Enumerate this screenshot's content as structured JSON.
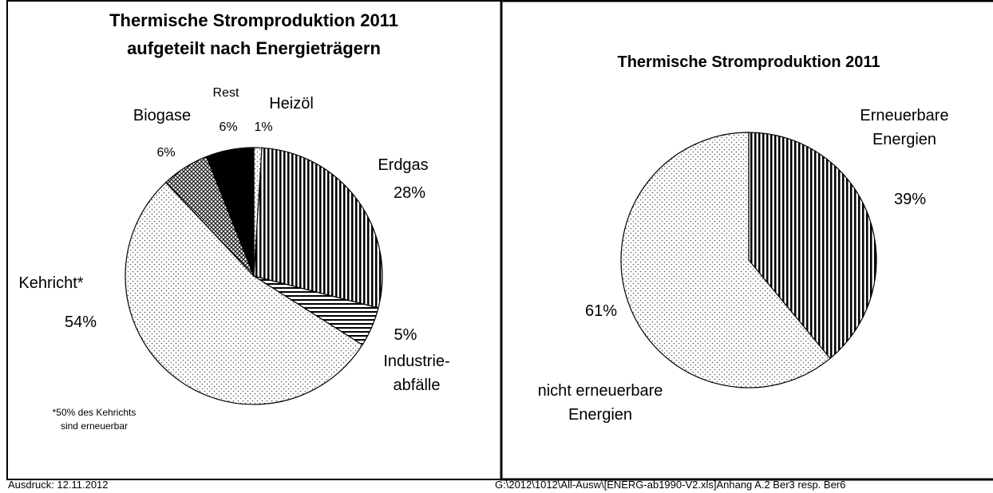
{
  "chart_data": [
    {
      "type": "pie",
      "title": "Thermische Stromproduktion 2011\naufgeteilt nach Energieträgern",
      "categories": [
        "Heizöl",
        "Erdgas",
        "Industrie-\nabfälle",
        "Kehricht*",
        "Biogase",
        "Rest"
      ],
      "values": [
        1,
        28,
        5,
        54,
        6,
        6
      ],
      "value_labels": [
        "1%",
        "28%",
        "5%",
        "54%",
        "6%",
        "6%"
      ],
      "annotation": "*50% des Kehrichts\nsind erneuerbar"
    },
    {
      "type": "pie",
      "title": "Thermische Stromproduktion 2011",
      "categories": [
        "Erneuerbare\nEnergien",
        "nicht erneuerbare\nEnergien"
      ],
      "values": [
        39,
        61
      ],
      "value_labels": [
        "39%",
        "61%"
      ]
    }
  ],
  "footer": {
    "left": "Ausdruck:    12.11.2012",
    "right": "G:\\2012\\1012\\All-Ausw\\[ENERG-ab1990-V2.xls]Anhang A.2    Ber3 resp. Ber6"
  }
}
